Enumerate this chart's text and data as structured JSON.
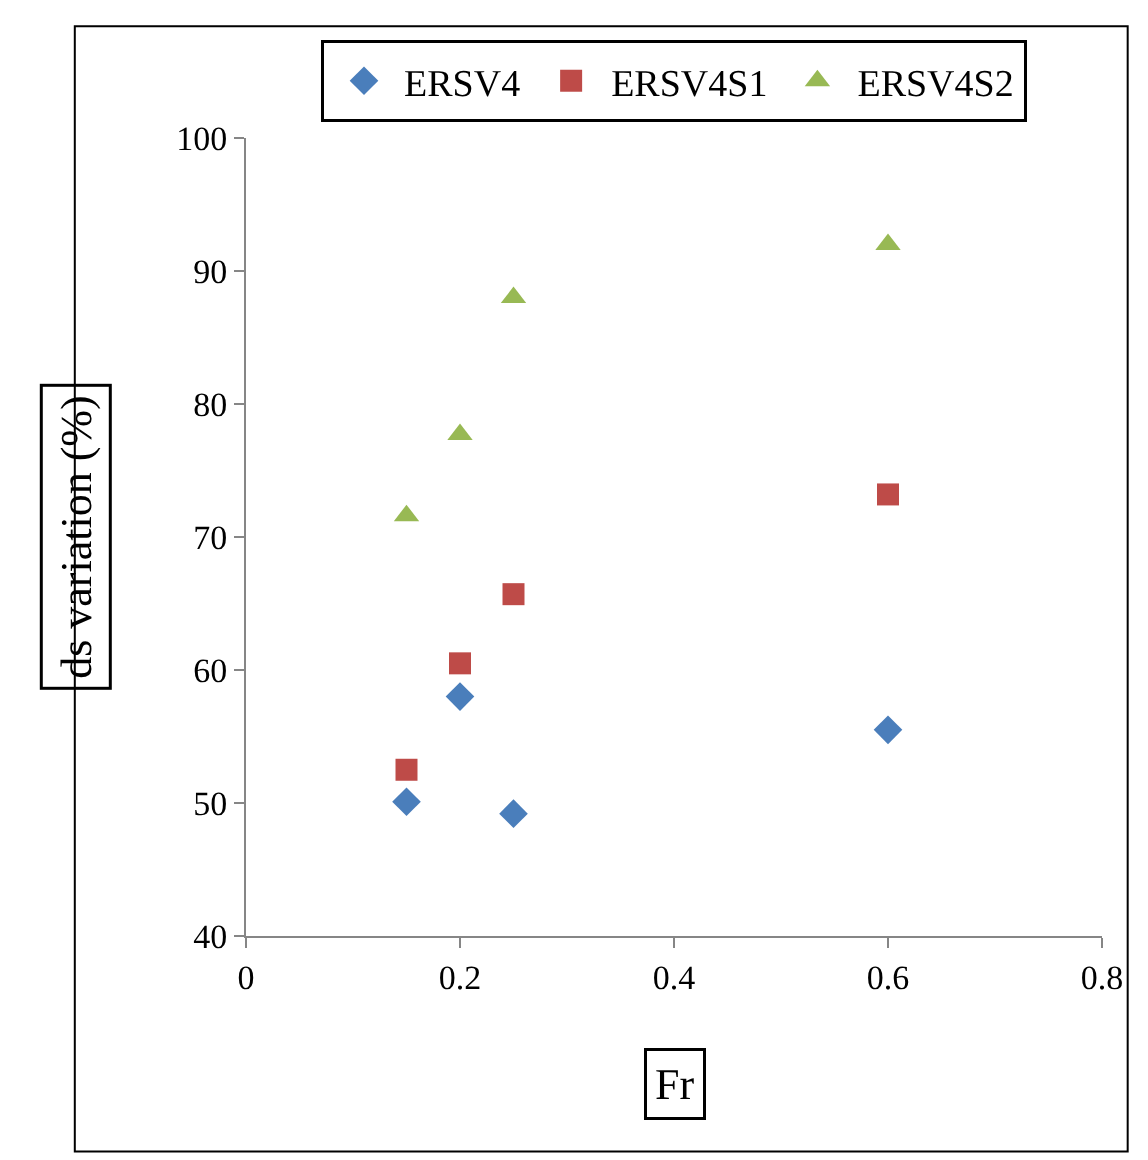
{
  "chart_data": {
    "type": "scatter",
    "xlabel": "Fr",
    "ylabel": "ds variation (%)",
    "x": [
      0.15,
      0.2,
      0.25,
      0.6
    ],
    "series": [
      {
        "name": "ERSV4",
        "color": "#4a7ebb",
        "marker": "diamond",
        "values": [
          50.1,
          58.0,
          49.2,
          55.5
        ]
      },
      {
        "name": "ERSV4S1",
        "color": "#be4b48",
        "marker": "square",
        "values": [
          52.5,
          60.5,
          65.7,
          73.2
        ]
      },
      {
        "name": "ERSV4S2",
        "color": "#98b954",
        "marker": "triangle",
        "values": [
          71.6,
          77.7,
          88.0,
          92.0
        ]
      }
    ],
    "xlim": [
      0,
      0.8
    ],
    "xticks": [
      0,
      0.2,
      0.4,
      0.6,
      0.8
    ],
    "ylim": [
      40,
      100
    ],
    "yticks": [
      40,
      50,
      60,
      70,
      80,
      90,
      100
    ],
    "grid": false,
    "legend": "top"
  }
}
